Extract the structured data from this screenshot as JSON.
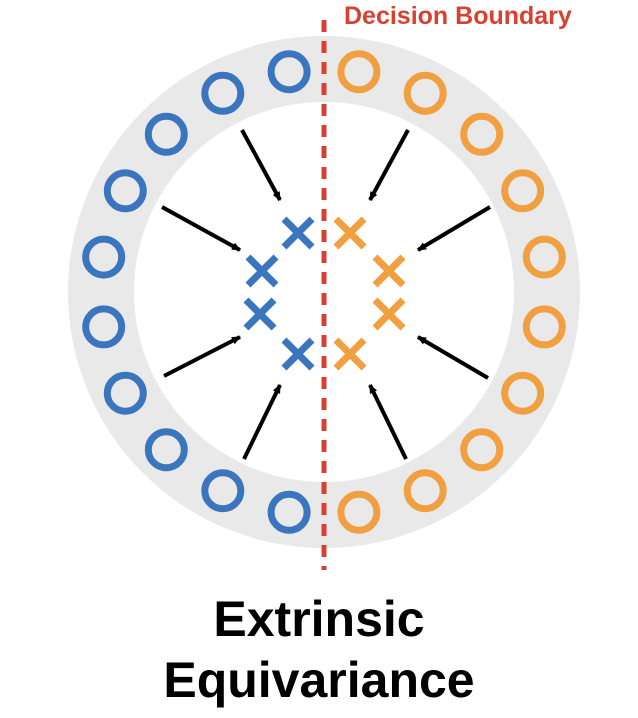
{
  "labels": {
    "decision_boundary": "Decision Boundary",
    "caption_line1": "Extrinsic",
    "caption_line2": "Equivariance"
  },
  "colors": {
    "blue": "#3a75bd",
    "orange": "#f0a040",
    "ring": "#e9e9e9",
    "boundary": "#d8412f",
    "arrow": "#000000"
  },
  "icons": {
    "circle_marker": "circle-icon",
    "cross_marker": "cross-icon",
    "arrow": "arrow-icon"
  }
}
